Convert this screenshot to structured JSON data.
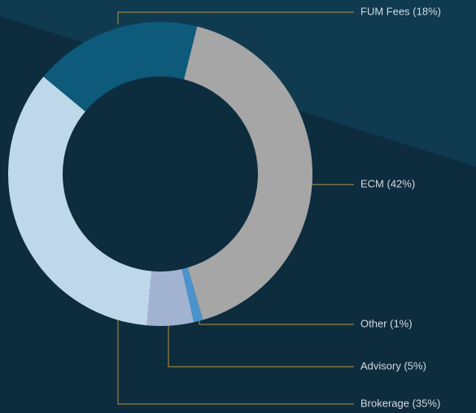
{
  "chart_data": {
    "type": "donut",
    "categories": [
      "ECM (42%)",
      "Other (1%)",
      "Advisory (5%)",
      "Brokerage (35%)",
      "FUM Fees (18%)"
    ],
    "values": [
      42,
      1,
      5,
      35,
      18
    ],
    "colors": [
      "#a6a6a6",
      "#4a93cc",
      "#a2b3d2",
      "#bed8ea",
      "#0d5a7a"
    ]
  }
}
